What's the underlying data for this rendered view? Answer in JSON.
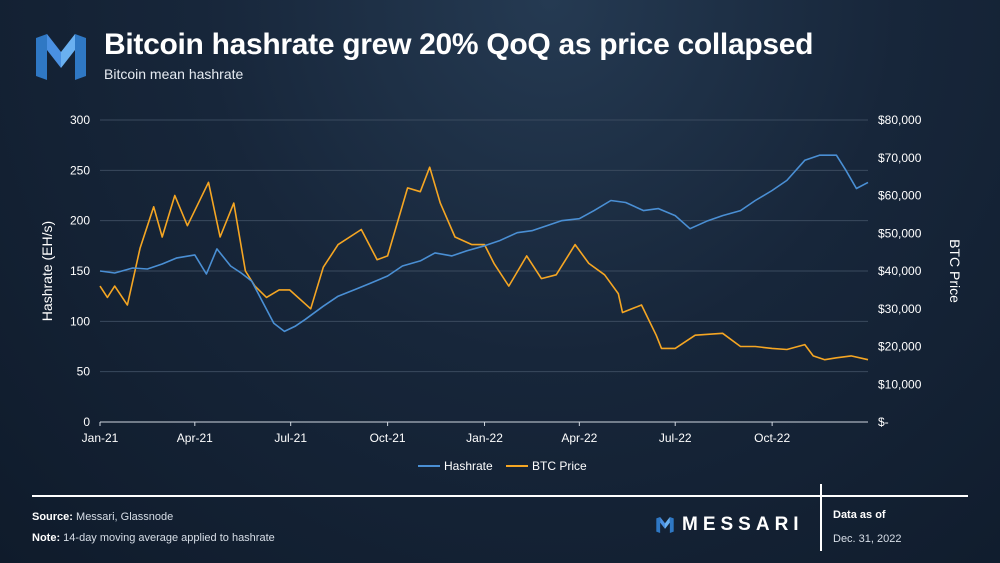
{
  "header": {
    "title": "Bitcoin hashrate grew 20% QoQ as price collapsed",
    "subtitle": "Bitcoin mean hashrate"
  },
  "footer": {
    "source_label": "Source:",
    "source_text": "Messari, Glassnode",
    "note_label": "Note:",
    "note_text": "14-day moving average applied to hashrate",
    "brand": "MESSARI",
    "asof_label": "Data as of",
    "asof_date": "Dec. 31, 2022"
  },
  "colors": {
    "hashrate": "#4a8fd4",
    "btc_price": "#f5a623",
    "grid": "#3a4a5e",
    "brand_blue": "#4a90e2"
  },
  "chart_data": {
    "type": "line",
    "x_ticks": [
      "Jan-21",
      "Apr-21",
      "Jul-21",
      "Oct-21",
      "Jan-22",
      "Apr-22",
      "Jul-22",
      "Oct-22"
    ],
    "x_tick_dates": [
      "2021-01-01",
      "2021-04-01",
      "2021-07-01",
      "2021-10-01",
      "2022-01-01",
      "2022-04-01",
      "2022-07-01",
      "2022-10-01"
    ],
    "x_range": [
      "2021-01-01",
      "2022-12-31"
    ],
    "ylabel": "Hashrate (EH/s)",
    "y2label": "BTC Price",
    "ylim": [
      0,
      300
    ],
    "y_ticks": [
      0,
      50,
      100,
      150,
      200,
      250,
      300
    ],
    "y_tick_labels": [
      "0",
      "50",
      "100",
      "150",
      "200",
      "250",
      "300"
    ],
    "y2lim": [
      0,
      80000
    ],
    "y2_ticks": [
      0,
      10000,
      20000,
      30000,
      40000,
      50000,
      60000,
      70000,
      80000
    ],
    "y2_tick_labels": [
      "$-",
      "$10,000",
      "$20,000",
      "$30,000",
      "$40,000",
      "$50,000",
      "$60,000",
      "$70,000",
      "$80,000"
    ],
    "grid": true,
    "legend_position": "bottom",
    "series": [
      {
        "name": "Hashrate",
        "axis": "left",
        "dates": [
          "2021-01-01",
          "2021-01-15",
          "2021-02-01",
          "2021-02-15",
          "2021-03-01",
          "2021-03-15",
          "2021-04-01",
          "2021-04-12",
          "2021-04-22",
          "2021-05-05",
          "2021-05-15",
          "2021-05-25",
          "2021-06-05",
          "2021-06-15",
          "2021-06-25",
          "2021-07-05",
          "2021-07-15",
          "2021-08-01",
          "2021-08-15",
          "2021-09-01",
          "2021-09-15",
          "2021-10-01",
          "2021-10-15",
          "2021-11-01",
          "2021-11-15",
          "2021-12-01",
          "2021-12-15",
          "2022-01-01",
          "2022-01-15",
          "2022-02-01",
          "2022-02-15",
          "2022-03-01",
          "2022-03-15",
          "2022-04-01",
          "2022-04-15",
          "2022-05-01",
          "2022-05-15",
          "2022-06-01",
          "2022-06-15",
          "2022-07-01",
          "2022-07-15",
          "2022-08-01",
          "2022-08-15",
          "2022-09-01",
          "2022-09-15",
          "2022-10-01",
          "2022-10-15",
          "2022-11-01",
          "2022-11-15",
          "2022-12-01",
          "2022-12-10",
          "2022-12-20",
          "2022-12-31"
        ],
        "values": [
          150,
          148,
          153,
          152,
          157,
          163,
          166,
          147,
          172,
          155,
          148,
          140,
          118,
          98,
          90,
          95,
          102,
          115,
          125,
          132,
          138,
          145,
          155,
          160,
          168,
          165,
          170,
          175,
          180,
          188,
          190,
          195,
          200,
          202,
          210,
          220,
          218,
          210,
          212,
          205,
          192,
          200,
          205,
          210,
          220,
          230,
          240,
          260,
          265,
          265,
          250,
          232,
          238
        ]
      },
      {
        "name": "BTC Price",
        "axis": "right",
        "dates": [
          "2021-01-01",
          "2021-01-08",
          "2021-01-15",
          "2021-01-27",
          "2021-02-08",
          "2021-02-21",
          "2021-03-01",
          "2021-03-13",
          "2021-03-25",
          "2021-04-14",
          "2021-04-25",
          "2021-05-08",
          "2021-05-19",
          "2021-05-28",
          "2021-06-08",
          "2021-06-20",
          "2021-06-30",
          "2021-07-20",
          "2021-08-01",
          "2021-08-15",
          "2021-09-06",
          "2021-09-21",
          "2021-10-01",
          "2021-10-20",
          "2021-11-01",
          "2021-11-10",
          "2021-11-20",
          "2021-12-04",
          "2021-12-20",
          "2022-01-01",
          "2022-01-10",
          "2022-01-24",
          "2022-02-10",
          "2022-02-24",
          "2022-03-10",
          "2022-03-28",
          "2022-04-10",
          "2022-04-25",
          "2022-05-08",
          "2022-05-12",
          "2022-05-30",
          "2022-06-13",
          "2022-06-18",
          "2022-07-01",
          "2022-07-20",
          "2022-08-15",
          "2022-09-01",
          "2022-09-15",
          "2022-10-01",
          "2022-10-15",
          "2022-11-01",
          "2022-11-09",
          "2022-11-20",
          "2022-12-01",
          "2022-12-15",
          "2022-12-31"
        ],
        "values": [
          36000,
          33000,
          36000,
          31000,
          46000,
          57000,
          49000,
          60000,
          52000,
          63500,
          49000,
          58000,
          40000,
          36000,
          33000,
          35000,
          35000,
          30000,
          41000,
          47000,
          51000,
          43000,
          44000,
          62000,
          61000,
          67500,
          58000,
          49000,
          47000,
          47000,
          42000,
          36000,
          44000,
          38000,
          39000,
          47000,
          42000,
          39000,
          34000,
          29000,
          31000,
          23000,
          19500,
          19500,
          23000,
          23500,
          20000,
          20000,
          19500,
          19200,
          20500,
          17500,
          16500,
          17000,
          17500,
          16500
        ]
      }
    ]
  }
}
